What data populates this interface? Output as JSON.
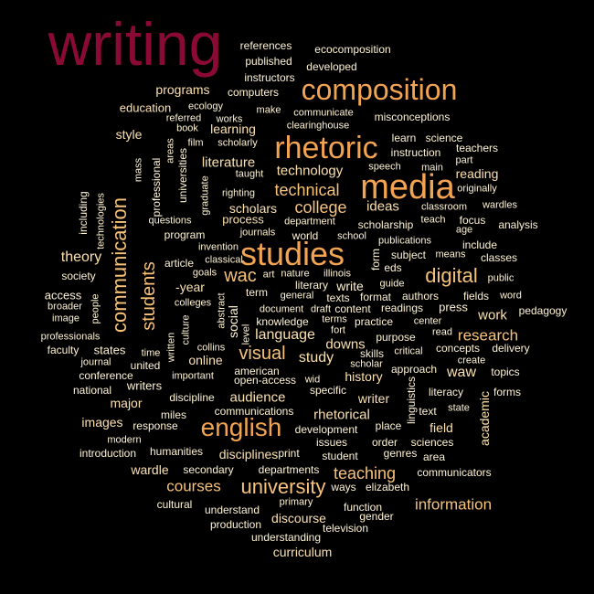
{
  "colors": {
    "background": "#000000",
    "tier_1": "#8b0a35",
    "tier_2": "#f2a452",
    "tier_3": "#f7c27a",
    "tier_4": "#fbe0ad",
    "tier_5": "#fef3d2"
  },
  "words": [
    {
      "text": "writing",
      "tier": 1
    },
    {
      "text": "studies",
      "tier": 2
    },
    {
      "text": "media",
      "tier": 2
    },
    {
      "text": "rhetoric",
      "tier": 2
    },
    {
      "text": "composition",
      "tier": 2
    },
    {
      "text": "english",
      "tier": 2
    },
    {
      "text": "communication",
      "tier": 3
    },
    {
      "text": "students",
      "tier": 3
    },
    {
      "text": "digital",
      "tier": 3
    },
    {
      "text": "university",
      "tier": 3
    },
    {
      "text": "technical",
      "tier": 3
    },
    {
      "text": "college",
      "tier": 3
    },
    {
      "text": "visual",
      "tier": 3
    },
    {
      "text": "wac",
      "tier": 3
    },
    {
      "text": "teaching",
      "tier": 3
    },
    {
      "text": "information",
      "tier": 3
    },
    {
      "text": "courses",
      "tier": 3
    },
    {
      "text": "research",
      "tier": 3
    },
    {
      "text": "literature",
      "tier": 4
    },
    {
      "text": "technology",
      "tier": 4
    },
    {
      "text": "programs",
      "tier": 4
    },
    {
      "text": "education",
      "tier": 4
    },
    {
      "text": "learning",
      "tier": 4
    },
    {
      "text": "scholars",
      "tier": 4
    },
    {
      "text": "process",
      "tier": 4
    },
    {
      "text": "ideas",
      "tier": 4
    },
    {
      "text": "theory",
      "tier": 4
    },
    {
      "text": "language",
      "tier": 4
    },
    {
      "text": "study",
      "tier": 4
    },
    {
      "text": "downs",
      "tier": 4
    },
    {
      "text": "online",
      "tier": 4
    },
    {
      "text": "waw",
      "tier": 4
    },
    {
      "text": "work",
      "tier": 4
    },
    {
      "text": "audience",
      "tier": 4
    },
    {
      "text": "major",
      "tier": 4
    },
    {
      "text": "images",
      "tier": 4
    },
    {
      "text": "rhetorical",
      "tier": 4
    },
    {
      "text": "writer",
      "tier": 4
    },
    {
      "text": "disciplines",
      "tier": 4
    },
    {
      "text": "discourse",
      "tier": 4
    },
    {
      "text": "curriculum",
      "tier": 4
    },
    {
      "text": "academic",
      "tier": 4
    },
    {
      "text": "field",
      "tier": 4
    },
    {
      "text": "history",
      "tier": 4
    },
    {
      "text": "reading",
      "tier": 4
    },
    {
      "text": "-year",
      "tier": 4
    },
    {
      "text": "wardle",
      "tier": 4
    },
    {
      "text": "style",
      "tier": 4
    },
    {
      "text": "access",
      "tier": 5
    },
    {
      "text": "professional",
      "tier": 5
    },
    {
      "text": "universities",
      "tier": 5
    },
    {
      "text": "references",
      "tier": 5
    },
    {
      "text": "ecocomposition",
      "tier": 5
    },
    {
      "text": "published",
      "tier": 5
    },
    {
      "text": "developed",
      "tier": 5
    },
    {
      "text": "instructors",
      "tier": 5
    },
    {
      "text": "computers",
      "tier": 5
    },
    {
      "text": "ecology",
      "tier": 5
    },
    {
      "text": "make",
      "tier": 5
    },
    {
      "text": "communicate",
      "tier": 5
    },
    {
      "text": "misconceptions",
      "tier": 5
    },
    {
      "text": "referred",
      "tier": 5
    },
    {
      "text": "works",
      "tier": 5
    },
    {
      "text": "clearinghouse",
      "tier": 5
    },
    {
      "text": "book",
      "tier": 5
    },
    {
      "text": "film",
      "tier": 5
    },
    {
      "text": "learn",
      "tier": 5
    },
    {
      "text": "science",
      "tier": 5
    },
    {
      "text": "areas",
      "tier": 5
    },
    {
      "text": "scholarly",
      "tier": 5
    },
    {
      "text": "instruction",
      "tier": 5
    },
    {
      "text": "teachers",
      "tier": 5
    },
    {
      "text": "mass",
      "tier": 5
    },
    {
      "text": "taught",
      "tier": 5
    },
    {
      "text": "speech",
      "tier": 5
    },
    {
      "text": "main",
      "tier": 5
    },
    {
      "text": "part",
      "tier": 5
    },
    {
      "text": "originally",
      "tier": 5
    },
    {
      "text": "including",
      "tier": 5
    },
    {
      "text": "technologies",
      "tier": 5
    },
    {
      "text": "graduate",
      "tier": 5
    },
    {
      "text": "righting",
      "tier": 5
    },
    {
      "text": "classroom",
      "tier": 5
    },
    {
      "text": "wardles",
      "tier": 5
    },
    {
      "text": "questions",
      "tier": 5
    },
    {
      "text": "department",
      "tier": 5
    },
    {
      "text": "teach",
      "tier": 5
    },
    {
      "text": "focus",
      "tier": 5
    },
    {
      "text": "age",
      "tier": 5
    },
    {
      "text": "scholarship",
      "tier": 5
    },
    {
      "text": "analysis",
      "tier": 5
    },
    {
      "text": "program",
      "tier": 5
    },
    {
      "text": "journals",
      "tier": 5
    },
    {
      "text": "world",
      "tier": 5
    },
    {
      "text": "school",
      "tier": 5
    },
    {
      "text": "publications",
      "tier": 5
    },
    {
      "text": "include",
      "tier": 5
    },
    {
      "text": "invention",
      "tier": 5
    },
    {
      "text": "subject",
      "tier": 5
    },
    {
      "text": "means",
      "tier": 5
    },
    {
      "text": "classes",
      "tier": 5
    },
    {
      "text": "article",
      "tier": 5
    },
    {
      "text": "classical",
      "tier": 5
    },
    {
      "text": "form",
      "tier": 5
    },
    {
      "text": "eds",
      "tier": 5
    },
    {
      "text": "society",
      "tier": 5
    },
    {
      "text": "goals",
      "tier": 5
    },
    {
      "text": "art",
      "tier": 5
    },
    {
      "text": "nature",
      "tier": 5
    },
    {
      "text": "illinois",
      "tier": 5
    },
    {
      "text": "public",
      "tier": 5
    },
    {
      "text": "literary",
      "tier": 5
    },
    {
      "text": "write",
      "tier": 5
    },
    {
      "text": "guide",
      "tier": 5
    },
    {
      "text": "term",
      "tier": 5
    },
    {
      "text": "general",
      "tier": 5
    },
    {
      "text": "texts",
      "tier": 5
    },
    {
      "text": "format",
      "tier": 5
    },
    {
      "text": "authors",
      "tier": 5
    },
    {
      "text": "fields",
      "tier": 5
    },
    {
      "text": "word",
      "tier": 5
    },
    {
      "text": "broader",
      "tier": 5
    },
    {
      "text": "people",
      "tier": 5
    },
    {
      "text": "colleges",
      "tier": 5
    },
    {
      "text": "abstract",
      "tier": 5
    },
    {
      "text": "document",
      "tier": 5
    },
    {
      "text": "draft",
      "tier": 5
    },
    {
      "text": "content",
      "tier": 5
    },
    {
      "text": "readings",
      "tier": 5
    },
    {
      "text": "press",
      "tier": 5
    },
    {
      "text": "pedagogy",
      "tier": 5
    },
    {
      "text": "image",
      "tier": 5
    },
    {
      "text": "social",
      "tier": 5
    },
    {
      "text": "knowledge",
      "tier": 5
    },
    {
      "text": "terms",
      "tier": 5
    },
    {
      "text": "practice",
      "tier": 5
    },
    {
      "text": "center",
      "tier": 5
    },
    {
      "text": "professionals",
      "tier": 5
    },
    {
      "text": "level",
      "tier": 5
    },
    {
      "text": "culture",
      "tier": 5
    },
    {
      "text": "purpose",
      "tier": 5
    },
    {
      "text": "read",
      "tier": 5
    },
    {
      "text": "faculty",
      "tier": 5
    },
    {
      "text": "states",
      "tier": 5
    },
    {
      "text": "time",
      "tier": 5
    },
    {
      "text": "collins",
      "tier": 5
    },
    {
      "text": "skills",
      "tier": 5
    },
    {
      "text": "critical",
      "tier": 5
    },
    {
      "text": "concepts",
      "tier": 5
    },
    {
      "text": "delivery",
      "tier": 5
    },
    {
      "text": "journal",
      "tier": 5
    },
    {
      "text": "written",
      "tier": 5
    },
    {
      "text": "united",
      "tier": 5
    },
    {
      "text": "american",
      "tier": 5
    },
    {
      "text": "scholar",
      "tier": 5
    },
    {
      "text": "approach",
      "tier": 5
    },
    {
      "text": "create",
      "tier": 5
    },
    {
      "text": "topics",
      "tier": 5
    },
    {
      "text": "conference",
      "tier": 5
    },
    {
      "text": "important",
      "tier": 5
    },
    {
      "text": "open-access",
      "tier": 5
    },
    {
      "text": "wid",
      "tier": 5
    },
    {
      "text": "writers",
      "tier": 5
    },
    {
      "text": "national",
      "tier": 5
    },
    {
      "text": "specific",
      "tier": 5
    },
    {
      "text": "linguistics",
      "tier": 5
    },
    {
      "text": "literacy",
      "tier": 5
    },
    {
      "text": "forms",
      "tier": 5
    },
    {
      "text": "discipline",
      "tier": 5
    },
    {
      "text": "communications",
      "tier": 5
    },
    {
      "text": "text",
      "tier": 5
    },
    {
      "text": "state",
      "tier": 5
    },
    {
      "text": "miles",
      "tier": 5
    },
    {
      "text": "response",
      "tier": 5
    },
    {
      "text": "development",
      "tier": 5
    },
    {
      "text": "place",
      "tier": 5
    },
    {
      "text": "modern",
      "tier": 5
    },
    {
      "text": "issues",
      "tier": 5
    },
    {
      "text": "order",
      "tier": 5
    },
    {
      "text": "sciences",
      "tier": 5
    },
    {
      "text": "introduction",
      "tier": 5
    },
    {
      "text": "humanities",
      "tier": 5
    },
    {
      "text": "print",
      "tier": 5
    },
    {
      "text": "student",
      "tier": 5
    },
    {
      "text": "genres",
      "tier": 5
    },
    {
      "text": "area",
      "tier": 5
    },
    {
      "text": "secondary",
      "tier": 5
    },
    {
      "text": "departments",
      "tier": 5
    },
    {
      "text": "communicators",
      "tier": 5
    },
    {
      "text": "ways",
      "tier": 5
    },
    {
      "text": "elizabeth",
      "tier": 5
    },
    {
      "text": "cultural",
      "tier": 5
    },
    {
      "text": "primary",
      "tier": 5
    },
    {
      "text": "understand",
      "tier": 5
    },
    {
      "text": "function",
      "tier": 5
    },
    {
      "text": "gender",
      "tier": 5
    },
    {
      "text": "production",
      "tier": 5
    },
    {
      "text": "television",
      "tier": 5
    },
    {
      "text": "understanding",
      "tier": 5
    },
    {
      "text": "fort",
      "tier": 5
    }
  ]
}
